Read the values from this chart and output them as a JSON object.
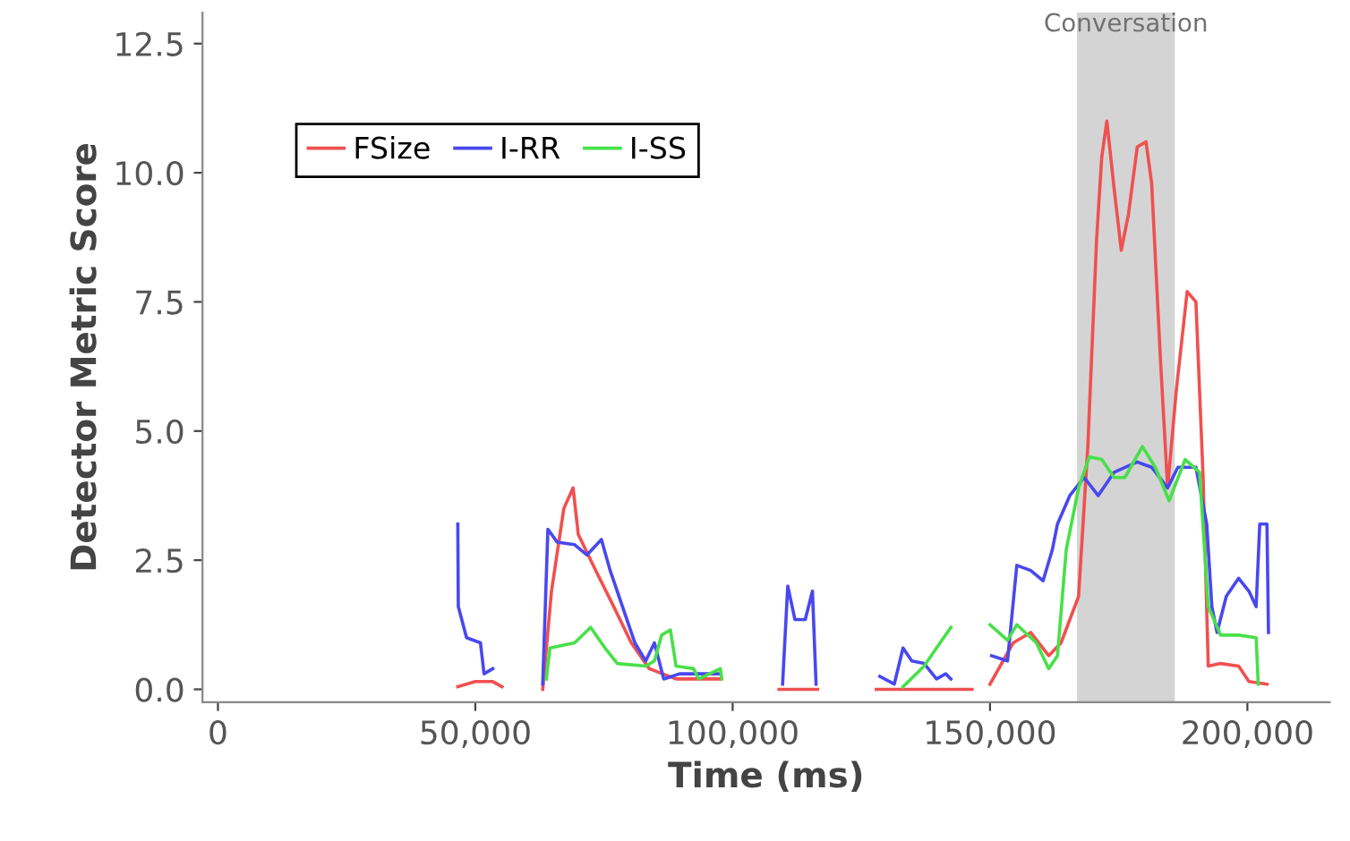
{
  "chart_data": {
    "type": "line",
    "xlabel": "Time (ms)",
    "ylabel": "Detector Metric Score",
    "xlim": [
      -3000,
      216000
    ],
    "ylim": [
      -0.25,
      13.1
    ],
    "xticks": [
      0,
      {
        "value": 50000,
        "label": "50,000"
      },
      {
        "value": 100000,
        "label": "100,000"
      },
      {
        "value": 150000,
        "label": "150,000"
      },
      {
        "value": 200000,
        "label": "200,000"
      }
    ],
    "yticks": [
      {
        "value": 0,
        "label": "0.0"
      },
      2.5,
      {
        "value": 5,
        "label": "5.0"
      },
      7.5,
      {
        "value": 10,
        "label": "10.0"
      },
      12.5
    ],
    "grid": false,
    "legend": "top left",
    "marker": "none",
    "line_style": "solid",
    "bands": [
      {
        "axis": "x",
        "from": 166900,
        "to": 185900,
        "label": "Conversation",
        "color": "#d4d4d4"
      }
    ],
    "series": [
      {
        "name": "FSize",
        "color": "#f05050",
        "x": [
          46600,
          50000,
          53400,
          55200,
          59000,
          63100,
          64800,
          67200,
          69000,
          70000,
          73400,
          76900,
          80300,
          83800,
          89000,
          97600,
          103000,
          109000,
          116500,
          122000,
          127900,
          146500,
          148000,
          150000,
          154500,
          157900,
          161400,
          163800,
          167200,
          169000,
          170700,
          171700,
          172700,
          174100,
          175500,
          176900,
          178600,
          180300,
          181400,
          183100,
          184500,
          186200,
          188300,
          190000,
          191400,
          192400,
          194800,
          198300,
          200300,
          203800
        ],
        "values": [
          0.05,
          0.15,
          0.15,
          0.05,
          null,
          0.0,
          1.9,
          3.5,
          3.9,
          3.0,
          2.3,
          1.6,
          0.9,
          0.4,
          0.2,
          0.2,
          null,
          0.0,
          0.0,
          null,
          0.0,
          0.0,
          null,
          0.1,
          0.9,
          1.1,
          0.65,
          0.9,
          1.8,
          4.7,
          8.7,
          10.3,
          11.0,
          9.7,
          8.5,
          9.2,
          10.5,
          10.6,
          9.8,
          6.4,
          3.9,
          5.8,
          7.7,
          7.5,
          4.1,
          0.45,
          0.5,
          0.45,
          0.15,
          0.1
        ]
      },
      {
        "name": "I-RR",
        "color": "#4848f0",
        "x": [
          46600,
          46700,
          48300,
          51000,
          51700,
          53400,
          58000,
          63100,
          64100,
          65900,
          69300,
          71700,
          74500,
          76200,
          78600,
          81000,
          83100,
          84800,
          86600,
          89700,
          93400,
          97600,
          103000,
          109700,
          110700,
          112100,
          114100,
          115500,
          116200,
          122000,
          128600,
          131400,
          133100,
          134800,
          137200,
          139600,
          141400,
          142400,
          146000,
          150300,
          153400,
          155200,
          157900,
          160300,
          162100,
          163100,
          165500,
          168300,
          171000,
          174100,
          178600,
          181400,
          184500,
          186500,
          190000,
          192100,
          193100,
          194100,
          195900,
          198300,
          200300,
          201700,
          202400,
          203800,
          204100
        ],
        "values": [
          3.2,
          1.6,
          1.0,
          0.9,
          0.3,
          0.4,
          null,
          0.1,
          3.1,
          2.85,
          2.8,
          2.6,
          2.9,
          2.3,
          1.6,
          0.9,
          0.55,
          0.9,
          0.2,
          0.3,
          0.3,
          0.3,
          null,
          0.1,
          2.0,
          1.35,
          1.35,
          1.9,
          0.1,
          null,
          0.25,
          0.1,
          0.8,
          0.55,
          0.5,
          0.2,
          0.3,
          0.2,
          null,
          0.65,
          0.55,
          2.4,
          2.3,
          2.1,
          2.7,
          3.2,
          3.75,
          4.1,
          3.75,
          4.2,
          4.4,
          4.3,
          3.9,
          4.3,
          4.3,
          3.2,
          1.6,
          1.1,
          1.8,
          2.15,
          1.9,
          1.6,
          3.2,
          3.2,
          1.1
        ]
      },
      {
        "name": "I-SS",
        "color": "#48e048",
        "x": [
          63800,
          64500,
          69300,
          72400,
          75200,
          77600,
          83100,
          84800,
          86200,
          87900,
          89000,
          92400,
          93400,
          97600,
          97900,
          115000,
          133100,
          137200,
          139600,
          142400,
          146000,
          150000,
          153400,
          155200,
          159000,
          161400,
          163100,
          164800,
          167200,
          169300,
          171700,
          174100,
          176200,
          179600,
          182100,
          184800,
          187900,
          190700,
          192400,
          194800,
          198300,
          201700,
          202100
        ],
        "values": [
          0.2,
          0.8,
          0.9,
          1.2,
          0.8,
          0.5,
          0.45,
          0.55,
          1.05,
          1.15,
          0.45,
          0.4,
          0.2,
          0.4,
          0.2,
          null,
          0.05,
          0.45,
          0.8,
          1.2,
          null,
          1.25,
          0.95,
          1.25,
          0.9,
          0.4,
          0.65,
          2.7,
          3.9,
          4.5,
          4.45,
          4.1,
          4.1,
          4.7,
          4.3,
          3.65,
          4.45,
          4.2,
          1.6,
          1.05,
          1.05,
          1.0,
          0.1
        ]
      }
    ]
  }
}
